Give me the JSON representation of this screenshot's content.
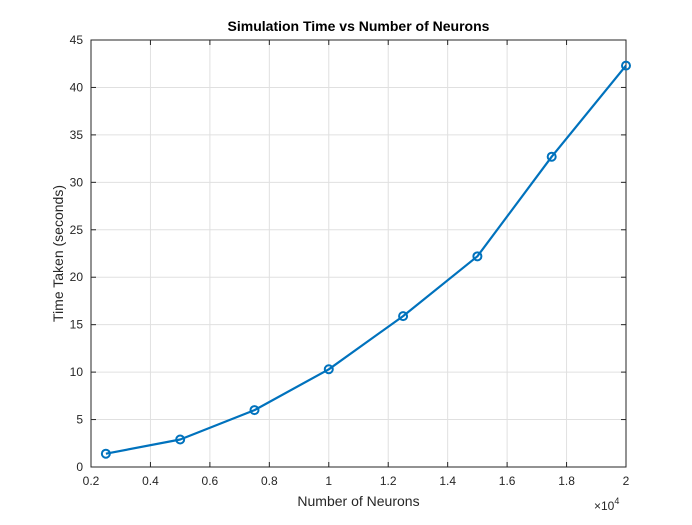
{
  "chart_data": {
    "type": "line",
    "title": "Simulation Time vs Number of Neurons",
    "xlabel": "Number of Neurons",
    "ylabel": "Time Taken (seconds)",
    "x_multiplier_label": "×10",
    "x_multiplier_exponent": "4",
    "xlim": [
      0.2,
      2
    ],
    "ylim": [
      0,
      45
    ],
    "x_tick_values": [
      0.2,
      0.4,
      0.6,
      0.8,
      1,
      1.2,
      1.4,
      1.6,
      1.8,
      2
    ],
    "x_tick_labels": [
      "0.2",
      "0.4",
      "0.6",
      "0.8",
      "1",
      "1.2",
      "1.4",
      "1.6",
      "1.8",
      "2"
    ],
    "y_tick_values": [
      0,
      5,
      10,
      15,
      20,
      25,
      30,
      35,
      40,
      45
    ],
    "y_tick_labels": [
      "0",
      "5",
      "10",
      "15",
      "20",
      "25",
      "30",
      "35",
      "40",
      "45"
    ],
    "grid": true,
    "series": [
      {
        "x": [
          2500,
          5000,
          7500,
          10000,
          12500,
          15000,
          17500,
          20000
        ],
        "y": [
          1.4,
          2.9,
          6.0,
          10.3,
          15.9,
          22.2,
          32.7,
          42.3
        ],
        "color": "#0072BD",
        "marker": "circle"
      }
    ]
  }
}
